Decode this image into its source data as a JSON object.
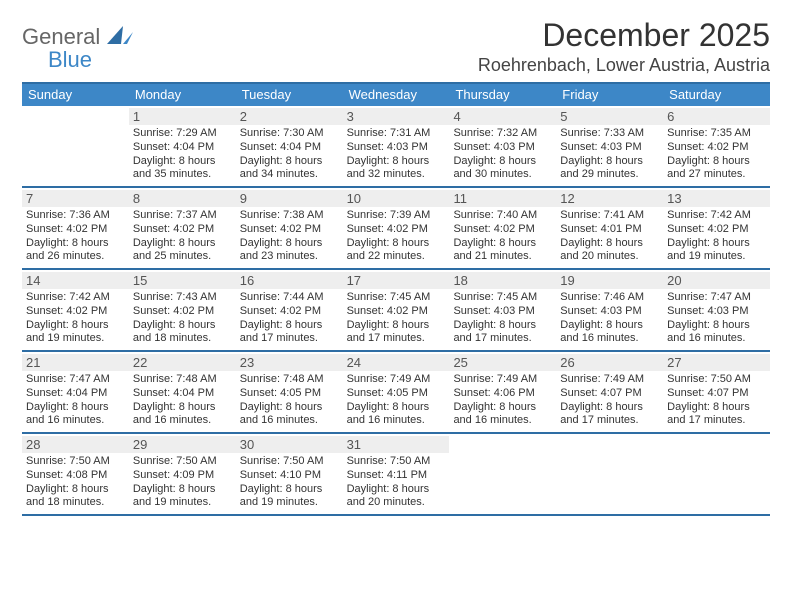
{
  "brand": {
    "part1": "General",
    "part2": "Blue"
  },
  "title": "December 2025",
  "location": "Roehrenbach, Lower Austria, Austria",
  "colors": {
    "header_bg": "#3d87c7",
    "border": "#2e6da4",
    "daynum_bg": "#eeeeee",
    "text": "#333333"
  },
  "dayNames": [
    "Sunday",
    "Monday",
    "Tuesday",
    "Wednesday",
    "Thursday",
    "Friday",
    "Saturday"
  ],
  "weeks": [
    [
      null,
      {
        "n": "1",
        "sr": "7:29 AM",
        "ss": "4:04 PM",
        "dl": "8 hours and 35 minutes."
      },
      {
        "n": "2",
        "sr": "7:30 AM",
        "ss": "4:04 PM",
        "dl": "8 hours and 34 minutes."
      },
      {
        "n": "3",
        "sr": "7:31 AM",
        "ss": "4:03 PM",
        "dl": "8 hours and 32 minutes."
      },
      {
        "n": "4",
        "sr": "7:32 AM",
        "ss": "4:03 PM",
        "dl": "8 hours and 30 minutes."
      },
      {
        "n": "5",
        "sr": "7:33 AM",
        "ss": "4:03 PM",
        "dl": "8 hours and 29 minutes."
      },
      {
        "n": "6",
        "sr": "7:35 AM",
        "ss": "4:02 PM",
        "dl": "8 hours and 27 minutes."
      }
    ],
    [
      {
        "n": "7",
        "sr": "7:36 AM",
        "ss": "4:02 PM",
        "dl": "8 hours and 26 minutes."
      },
      {
        "n": "8",
        "sr": "7:37 AM",
        "ss": "4:02 PM",
        "dl": "8 hours and 25 minutes."
      },
      {
        "n": "9",
        "sr": "7:38 AM",
        "ss": "4:02 PM",
        "dl": "8 hours and 23 minutes."
      },
      {
        "n": "10",
        "sr": "7:39 AM",
        "ss": "4:02 PM",
        "dl": "8 hours and 22 minutes."
      },
      {
        "n": "11",
        "sr": "7:40 AM",
        "ss": "4:02 PM",
        "dl": "8 hours and 21 minutes."
      },
      {
        "n": "12",
        "sr": "7:41 AM",
        "ss": "4:01 PM",
        "dl": "8 hours and 20 minutes."
      },
      {
        "n": "13",
        "sr": "7:42 AM",
        "ss": "4:02 PM",
        "dl": "8 hours and 19 minutes."
      }
    ],
    [
      {
        "n": "14",
        "sr": "7:42 AM",
        "ss": "4:02 PM",
        "dl": "8 hours and 19 minutes."
      },
      {
        "n": "15",
        "sr": "7:43 AM",
        "ss": "4:02 PM",
        "dl": "8 hours and 18 minutes."
      },
      {
        "n": "16",
        "sr": "7:44 AM",
        "ss": "4:02 PM",
        "dl": "8 hours and 17 minutes."
      },
      {
        "n": "17",
        "sr": "7:45 AM",
        "ss": "4:02 PM",
        "dl": "8 hours and 17 minutes."
      },
      {
        "n": "18",
        "sr": "7:45 AM",
        "ss": "4:03 PM",
        "dl": "8 hours and 17 minutes."
      },
      {
        "n": "19",
        "sr": "7:46 AM",
        "ss": "4:03 PM",
        "dl": "8 hours and 16 minutes."
      },
      {
        "n": "20",
        "sr": "7:47 AM",
        "ss": "4:03 PM",
        "dl": "8 hours and 16 minutes."
      }
    ],
    [
      {
        "n": "21",
        "sr": "7:47 AM",
        "ss": "4:04 PM",
        "dl": "8 hours and 16 minutes."
      },
      {
        "n": "22",
        "sr": "7:48 AM",
        "ss": "4:04 PM",
        "dl": "8 hours and 16 minutes."
      },
      {
        "n": "23",
        "sr": "7:48 AM",
        "ss": "4:05 PM",
        "dl": "8 hours and 16 minutes."
      },
      {
        "n": "24",
        "sr": "7:49 AM",
        "ss": "4:05 PM",
        "dl": "8 hours and 16 minutes."
      },
      {
        "n": "25",
        "sr": "7:49 AM",
        "ss": "4:06 PM",
        "dl": "8 hours and 16 minutes."
      },
      {
        "n": "26",
        "sr": "7:49 AM",
        "ss": "4:07 PM",
        "dl": "8 hours and 17 minutes."
      },
      {
        "n": "27",
        "sr": "7:50 AM",
        "ss": "4:07 PM",
        "dl": "8 hours and 17 minutes."
      }
    ],
    [
      {
        "n": "28",
        "sr": "7:50 AM",
        "ss": "4:08 PM",
        "dl": "8 hours and 18 minutes."
      },
      {
        "n": "29",
        "sr": "7:50 AM",
        "ss": "4:09 PM",
        "dl": "8 hours and 19 minutes."
      },
      {
        "n": "30",
        "sr": "7:50 AM",
        "ss": "4:10 PM",
        "dl": "8 hours and 19 minutes."
      },
      {
        "n": "31",
        "sr": "7:50 AM",
        "ss": "4:11 PM",
        "dl": "8 hours and 20 minutes."
      },
      null,
      null,
      null
    ]
  ],
  "labels": {
    "sunrise": "Sunrise:",
    "sunset": "Sunset:",
    "daylight": "Daylight:"
  }
}
